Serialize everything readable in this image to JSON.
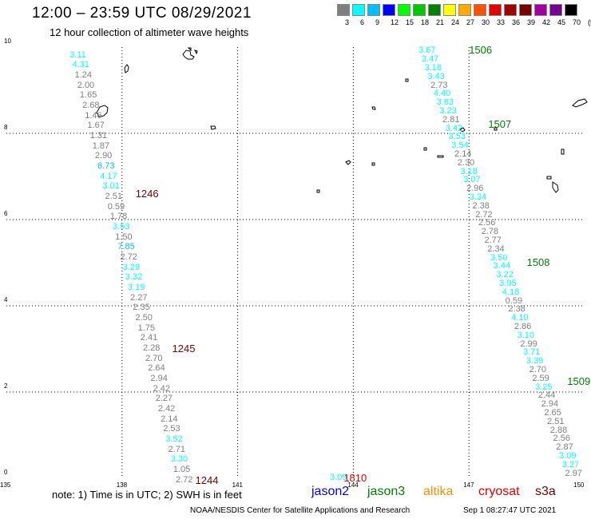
{
  "title": "12:00 – 23:59 UTC 08/29/2021",
  "subtitle": "12 hour collection of altimeter wave heights",
  "legend": {
    "labels": [
      "3",
      "6",
      "9",
      "12",
      "15",
      "18",
      "21",
      "24",
      "27",
      "30",
      "33",
      "36",
      "39",
      "42",
      "45",
      "70",
      "(ft)"
    ],
    "colors": [
      "#7f7f7f",
      "#00ffff",
      "#00bfff",
      "#0000ff",
      "#00ff00",
      "#00c800",
      "#008200",
      "#ffff00",
      "#ffaa00",
      "#ff5000",
      "#e60000",
      "#a00000",
      "#780000",
      "#a000a0",
      "#780096",
      "#000000"
    ]
  },
  "axes": {
    "x_ticks": [
      "135",
      "138",
      "141",
      "144",
      "147",
      "150"
    ],
    "y_ticks": [
      "0",
      "2",
      "4",
      "6",
      "8",
      "10"
    ],
    "x_range": [
      135,
      150
    ],
    "y_range": [
      0,
      10
    ]
  },
  "note": "note:  1) Time is in UTC; 2) SWH is in feet",
  "satellites": [
    {
      "name": "jason2",
      "color": "#0000ff"
    },
    {
      "name": "jason3",
      "color": "#008200"
    },
    {
      "name": "altika",
      "color": "#ff8c00"
    },
    {
      "name": "cryosat",
      "color": "#e60000"
    },
    {
      "name": "s3a",
      "color": "#780000"
    }
  ],
  "credit": "NOAA/NESDIS Center for Satellite Applications and Research",
  "timestamp": "Sep  1 08:27:47 UTC 2021",
  "track_labels": [
    {
      "text": "1506",
      "color": "#008200",
      "lon": 147.0,
      "lat": 9.93
    },
    {
      "text": "1507",
      "color": "#008200",
      "lon": 147.5,
      "lat": 8.2
    },
    {
      "text": "1508",
      "color": "#008200",
      "lon": 148.5,
      "lat": 5.0
    },
    {
      "text": "1509",
      "color": "#008200",
      "lon": 149.55,
      "lat": 2.25
    },
    {
      "text": "1246",
      "color": "#780000",
      "lon": 138.35,
      "lat": 6.6
    },
    {
      "text": "1245",
      "color": "#780000",
      "lon": 139.3,
      "lat": 3.0
    },
    {
      "text": "1244",
      "color": "#780000",
      "lon": 139.9,
      "lat": -0.05
    },
    {
      "text": "1810",
      "color": "#e60000",
      "lon": 143.75,
      "lat": 0.0
    }
  ],
  "observation_tracks": [
    {
      "lon_start": 136.85,
      "lat_start": 9.8,
      "lon_end": 139.6,
      "lat_end": -0.05,
      "values": [
        "3.11",
        "4.31",
        "1.24",
        "2.00",
        "1.65",
        "2.68",
        "1.46",
        "1.67",
        "1.31",
        "1.87",
        "2.90",
        "6.73",
        "4.17",
        "3.01",
        "2.51",
        "0.59",
        "1.78",
        "3.53",
        "1.50",
        "7.85",
        "2.72",
        "3.29",
        "3.32",
        "3.19",
        "2.27",
        "2.35",
        "2.50",
        "1.75",
        "2.41",
        "2.28",
        "2.70",
        "2.64",
        "2.94",
        "2.42",
        "2.27",
        "2.42",
        "2.14",
        "2.53",
        "3.52",
        "2.71",
        "3.30",
        "1.05",
        "2.72"
      ]
    },
    {
      "lon_start": 145.9,
      "lat_start": 9.9,
      "lon_end": 149.7,
      "lat_end": 0.1,
      "values": [
        "3.67",
        "3.47",
        "3.18",
        "3.43",
        "2.73",
        "4.40",
        "3.63",
        "3.23",
        "2.81",
        "3.42",
        "3.53",
        "3.54",
        "2.14",
        "2.30",
        "3.18",
        "3.07",
        "2.96",
        "3.34",
        "2.38",
        "2.72",
        "2.56",
        "2.78",
        "2.77",
        "2.34",
        "3.50",
        "3.44",
        "3.22",
        "3.95",
        "4.18",
        "0.59",
        "2.38",
        "4.10",
        "2.86",
        "3.10",
        "2.99",
        "3.71",
        "3.39",
        "2.70",
        "2.59",
        "3.25",
        "2.44",
        "2.94",
        "2.65",
        "2.51",
        "2.88",
        "2.56",
        "2.87",
        "3.09",
        "3.27",
        "2.97"
      ]
    },
    {
      "lon_start": 143.6,
      "lat_start": 0.0,
      "lon_end": 143.6,
      "lat_end": 0.0,
      "values": [
        "3.09"
      ]
    }
  ]
}
